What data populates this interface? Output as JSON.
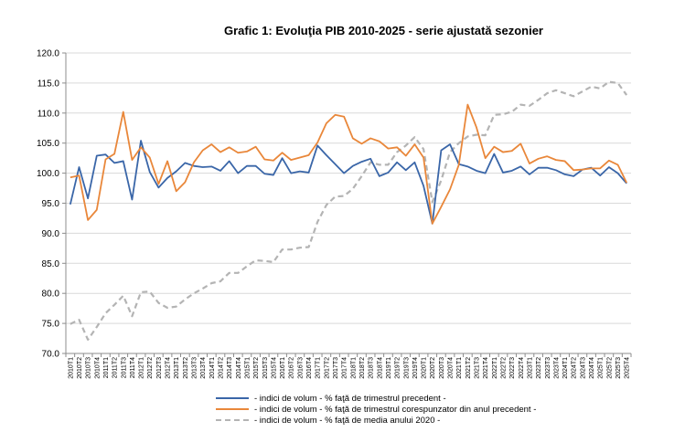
{
  "chart_data": {
    "type": "line",
    "title": "Grafic 1: Evoluţia PIB 2010-2025 - serie ajustată sezonier",
    "xlabel": "",
    "ylabel": "",
    "ylim": [
      70.0,
      120.0
    ],
    "yticks": [
      "70.0",
      "75.0",
      "80.0",
      "85.0",
      "90.0",
      "95.0",
      "100.0",
      "105.0",
      "110.0",
      "115.0",
      "120.0"
    ],
    "grid": true,
    "legend_position": "bottom",
    "categories": [
      "2010T1",
      "2010T2",
      "2010T3",
      "2010T4",
      "2011T1",
      "2011T2",
      "2011T3",
      "2011T4",
      "2012T1",
      "2012T2",
      "2012T3",
      "2012T4",
      "2013T1",
      "2013T2",
      "2013T3",
      "2013T4",
      "2014T1",
      "2014T2",
      "2014T3",
      "2014T4",
      "2015T1",
      "2015T2",
      "2015T3",
      "2015T4",
      "2016T1",
      "2016T2",
      "2016T3",
      "2016T4",
      "2017T1",
      "2017T2",
      "2017T3",
      "2017T4",
      "2018T1",
      "2018T2",
      "2018T3",
      "2018T4",
      "2019T1",
      "2019T2",
      "2019T3",
      "2019T4",
      "2020T1",
      "2020T2",
      "2020T3",
      "2020T4",
      "2021T1",
      "2021T2",
      "2021T3",
      "2021T4",
      "2022T1",
      "2022T2",
      "2022T3",
      "2022T4",
      "2023T1",
      "2023T2",
      "2023T3",
      "2023T4",
      "2024T1",
      "2024T2",
      "2024T3",
      "2024T4",
      "2025T1",
      "2025T2",
      "2025T3",
      "2025T4"
    ],
    "series": [
      {
        "name": "- indici de volum - % faţă de trimestrul precedent -",
        "color": "#3a66a8",
        "dash": "solid",
        "values": [
          94.8,
          101.0,
          95.8,
          102.9,
          103.1,
          101.7,
          102.0,
          95.6,
          105.4,
          100.2,
          97.6,
          99.2,
          100.3,
          101.7,
          101.2,
          101.0,
          101.1,
          100.4,
          102.0,
          100.0,
          101.2,
          101.2,
          99.9,
          99.7,
          102.5,
          100.0,
          100.3,
          100.1,
          104.6,
          103.0,
          101.5,
          100.0,
          101.2,
          101.9,
          102.4,
          99.5,
          100.1,
          101.8,
          100.5,
          101.8,
          97.9,
          91.6,
          103.8,
          104.8,
          101.5,
          101.1,
          100.4,
          100.0,
          103.2,
          100.1,
          100.4,
          101.1,
          99.8,
          100.9,
          100.9,
          100.5,
          99.8,
          99.5,
          100.6,
          100.9,
          99.6,
          101.0,
          100.0,
          98.3
        ]
      },
      {
        "name": "- indici de volum - % faţă de trimestrul corespunzator din anul precedent -",
        "color": "#e9873a",
        "dash": "solid",
        "values": [
          99.3,
          99.6,
          92.2,
          93.9,
          102.3,
          103.2,
          110.2,
          102.2,
          104.3,
          102.6,
          98.2,
          102.0,
          97.0,
          98.5,
          101.8,
          103.8,
          104.8,
          103.5,
          104.3,
          103.4,
          103.6,
          104.4,
          102.3,
          102.1,
          103.4,
          102.2,
          102.6,
          103.0,
          105.1,
          108.3,
          109.7,
          109.4,
          105.8,
          104.9,
          105.8,
          105.3,
          104.1,
          104.3,
          102.9,
          104.8,
          102.6,
          91.6,
          94.4,
          97.3,
          101.4,
          111.4,
          107.6,
          102.5,
          104.4,
          103.5,
          103.7,
          104.9,
          101.6,
          102.4,
          102.8,
          102.2,
          102.0,
          100.5,
          100.6,
          100.8,
          100.8,
          102.1,
          101.4,
          98.4
        ]
      },
      {
        "name": "- indici de volum - % faţă de media anului 2020 -",
        "color": "#b4b4b4",
        "dash": "dashed",
        "values": [
          74.9,
          75.6,
          72.3,
          74.4,
          76.7,
          78.1,
          79.6,
          76.2,
          80.2,
          80.3,
          78.4,
          77.6,
          77.8,
          79.0,
          80.0,
          80.8,
          81.7,
          82.0,
          83.4,
          83.4,
          84.5,
          85.5,
          85.4,
          85.2,
          87.3,
          87.3,
          87.6,
          87.7,
          91.9,
          94.7,
          96.1,
          96.2,
          97.4,
          99.5,
          101.8,
          101.4,
          101.4,
          103.5,
          104.6,
          106.0,
          104.0,
          95.2,
          98.8,
          103.5,
          105.0,
          106.1,
          106.4,
          106.3,
          109.7,
          109.8,
          110.2,
          111.4,
          111.2,
          112.2,
          113.3,
          113.8,
          113.3,
          112.8,
          113.6,
          114.4,
          114.1,
          115.2,
          115.0,
          113.0
        ]
      }
    ]
  }
}
